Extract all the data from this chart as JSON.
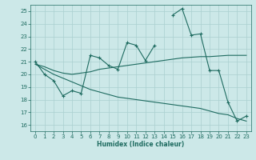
{
  "x": [
    0,
    1,
    2,
    3,
    4,
    5,
    6,
    7,
    8,
    9,
    10,
    11,
    12,
    13,
    14,
    15,
    16,
    17,
    18,
    19,
    20,
    21,
    22,
    23
  ],
  "line_main": [
    21,
    20,
    19.5,
    18.3,
    18.7,
    18.5,
    21.5,
    21.3,
    20.7,
    20.4,
    22.5,
    22.3,
    21.1,
    22.3,
    null,
    24.7,
    25.2,
    23.1,
    23.2,
    20.3,
    20.3,
    17.8,
    16.3,
    16.7
  ],
  "line_upper": [
    20.8,
    20.6,
    20.3,
    20.1,
    20.0,
    20.1,
    20.2,
    20.4,
    20.5,
    20.6,
    20.7,
    20.8,
    20.9,
    21.0,
    21.1,
    21.2,
    21.3,
    21.35,
    21.4,
    21.4,
    21.45,
    21.5,
    21.5,
    21.5
  ],
  "line_lower": [
    20.8,
    20.4,
    20.0,
    19.7,
    19.4,
    19.1,
    18.8,
    18.6,
    18.4,
    18.2,
    18.1,
    18.0,
    17.9,
    17.8,
    17.7,
    17.6,
    17.5,
    17.4,
    17.3,
    17.1,
    16.9,
    16.8,
    16.5,
    16.3
  ],
  "bg_color": "#cce8e8",
  "line_color": "#1e6b60",
  "grid_color": "#aacfcf",
  "xlabel": "Humidex (Indice chaleur)",
  "ylim": [
    15.5,
    25.5
  ],
  "xlim": [
    -0.5,
    23.5
  ],
  "yticks": [
    16,
    17,
    18,
    19,
    20,
    21,
    22,
    23,
    24,
    25
  ],
  "xticks": [
    0,
    1,
    2,
    3,
    4,
    5,
    6,
    7,
    8,
    9,
    10,
    11,
    12,
    13,
    14,
    15,
    16,
    17,
    18,
    19,
    20,
    21,
    22,
    23
  ]
}
